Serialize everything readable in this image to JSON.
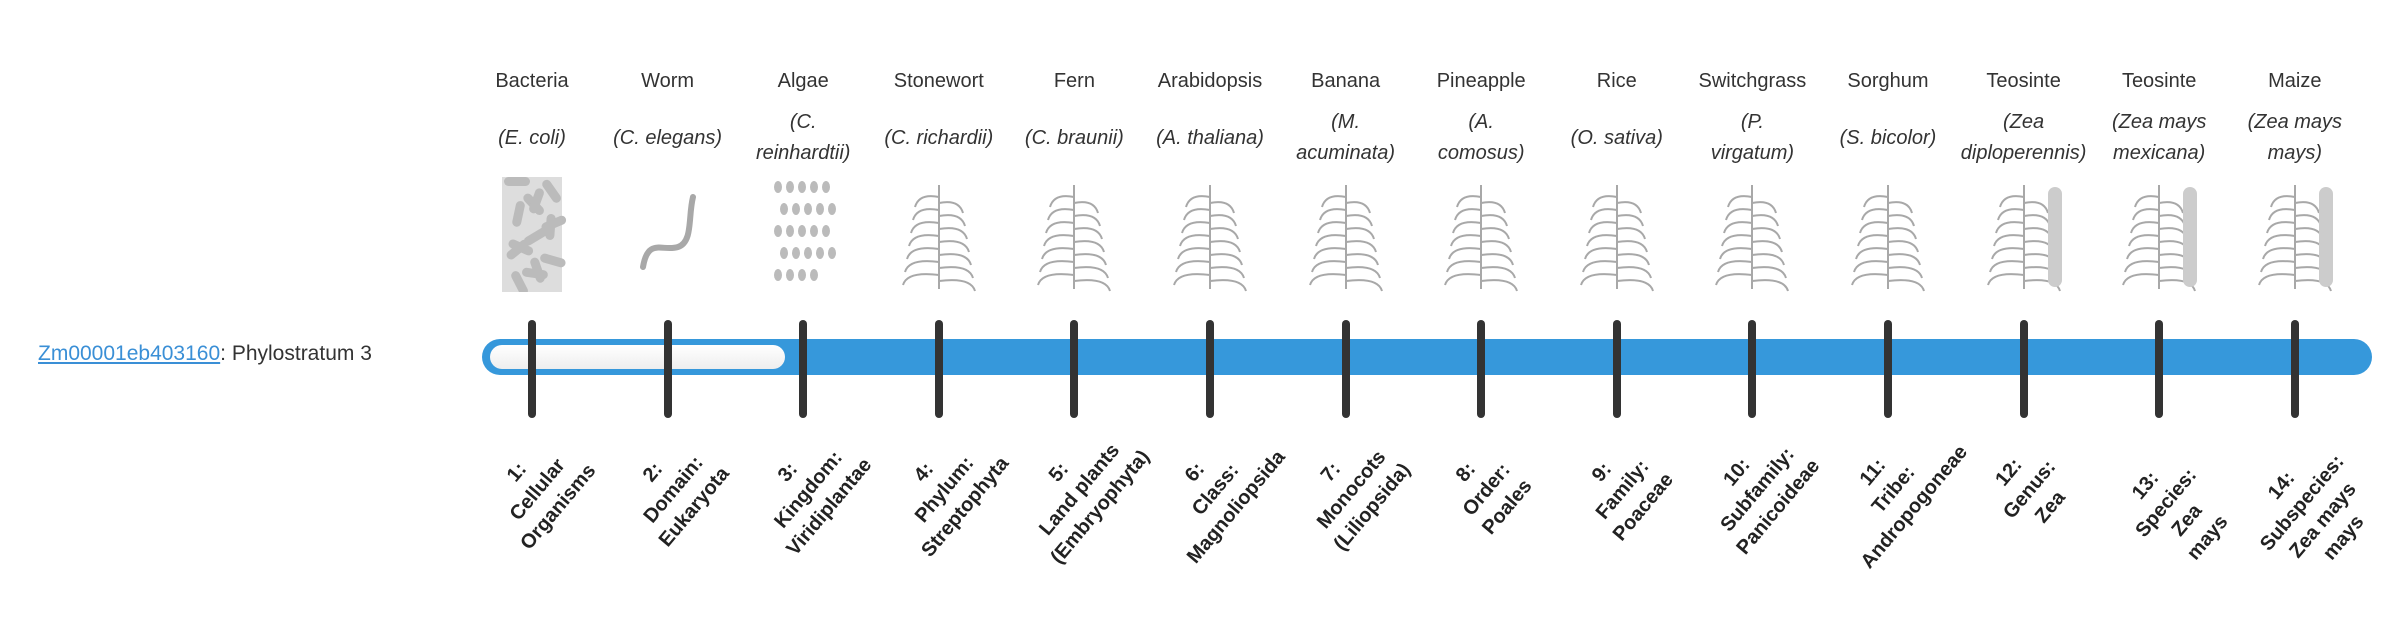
{
  "gene": {
    "id": "Zm00001eb403160",
    "suffix": ": Phylostratum 3",
    "stratum": 3
  },
  "colors": {
    "bar": "#3698db",
    "tick": "#333333",
    "link": "#3a8fd6"
  },
  "strata": [
    {
      "common": "Bacteria",
      "scientific": "(E. coli)",
      "icon": "bacteria-illustration",
      "label": "1:\nCellular\nOrganisms"
    },
    {
      "common": "Worm",
      "scientific": "(C. elegans)",
      "icon": "worm-illustration",
      "label": "2:\nDomain:\nEukaryota"
    },
    {
      "common": "Algae",
      "scientific": "(C.\nreinhardtii)",
      "icon": "algae-illustration",
      "label": "3:\nKingdom:\nViridiplantae"
    },
    {
      "common": "Stonewort",
      "scientific": "(C. richardii)",
      "icon": "stonewort-illustration",
      "label": "4:\nPhylum:\nStreptophyta"
    },
    {
      "common": "Fern",
      "scientific": "(C. braunii)",
      "icon": "fern-illustration",
      "label": "5:\nLand plants\n(Embryophyta)"
    },
    {
      "common": "Arabidopsis",
      "scientific": "(A. thaliana)",
      "icon": "arabidopsis-illustration",
      "label": "6:\nClass:\nMagnoliopsida"
    },
    {
      "common": "Banana",
      "scientific": "(M.\nacuminata)",
      "icon": "banana-illustration",
      "label": "7:\nMonocots\n(Liliopsida)"
    },
    {
      "common": "Pineapple",
      "scientific": "(A.\ncomosus)",
      "icon": "pineapple-illustration",
      "label": "8:\nOrder:\nPoales"
    },
    {
      "common": "Rice",
      "scientific": "(O. sativa)",
      "icon": "rice-illustration",
      "label": "9:\nFamily:\nPoaceae"
    },
    {
      "common": "Switchgrass",
      "scientific": "(P.\nvirgatum)",
      "icon": "switchgrass-illustration",
      "label": "10:\nSubfamily:\nPanicoideae"
    },
    {
      "common": "Sorghum",
      "scientific": "(S. bicolor)",
      "icon": "sorghum-illustration",
      "label": "11:\nTribe:\nAndropogoneae"
    },
    {
      "common": "Teosinte",
      "scientific": "(Zea\ndiploperennis)",
      "icon": "teosinte-illustration",
      "label": "12:\nGenus:\nZea"
    },
    {
      "common": "Teosinte",
      "scientific": "(Zea mays\nmexicana)",
      "icon": "teosinte-illustration",
      "label": "13:\nSpecies:\nZea\nmays"
    },
    {
      "common": "Maize",
      "scientific": "(Zea mays\nmays)",
      "icon": "maize-illustration",
      "label": "14:\nSubspecies:\nZea mays\nmays"
    }
  ]
}
